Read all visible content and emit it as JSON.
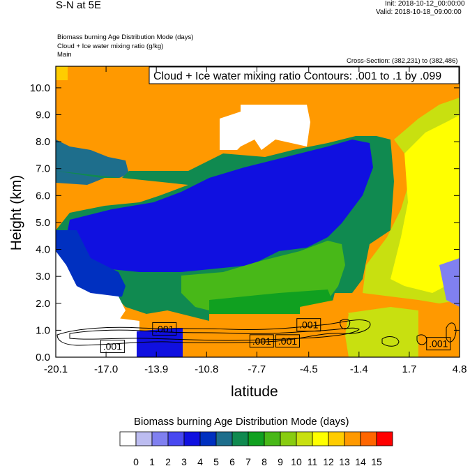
{
  "header": {
    "title": "S-N at 5E",
    "init": "Init: 2018-10-12_00:00:00",
    "valid": "Valid: 2018-10-18_09:00:00",
    "desc_line1": "Biomass burning Age Distribution Mode   (days)",
    "desc_line2": "Cloud + Ice water mixing ratio   (g/kg)",
    "desc_line3": "Main",
    "cross_section": "Cross-Section: (382,231) to (382,486)"
  },
  "chart_data": {
    "type": "heatmap",
    "title": "S-N at 5E",
    "xlabel": "latitude",
    "ylabel": "Height (km)",
    "x_ticks": [
      "-20.1",
      "-17.0",
      "-13.9",
      "-10.8",
      "-7.7",
      "-4.5",
      "-1.4",
      "1.7",
      "4.8"
    ],
    "y_ticks": [
      "0.0",
      "1.0",
      "2.0",
      "3.0",
      "4.0",
      "5.0",
      "6.0",
      "7.0",
      "8.0",
      "9.0",
      "10.0"
    ],
    "xlim": [
      -20.1,
      4.8
    ],
    "ylim": [
      0.0,
      10.8
    ],
    "contour_title": "Cloud + Ice water mixing ratio Contours: .001 to .1 by .099",
    "contour_labels": [
      {
        "text": ".001",
        "lat": -16.6,
        "h": 0.4
      },
      {
        "text": ".001",
        "lat": -13.4,
        "h": 1.05
      },
      {
        "text": ".001",
        "lat": -7.4,
        "h": 0.6
      },
      {
        "text": ".001",
        "lat": -5.8,
        "h": 0.6
      },
      {
        "text": ".001",
        "lat": -4.5,
        "h": 1.2
      },
      {
        "text": ".001",
        "lat": 3.5,
        "h": 0.5
      }
    ],
    "colorbar": {
      "title": "Biomass burning Age Distribution Mode  (days)",
      "labels": [
        "0",
        "1",
        "2",
        "3",
        "4",
        "5",
        "6",
        "7",
        "8",
        "9",
        "10",
        "11",
        "12",
        "13",
        "14",
        "15"
      ],
      "colors": [
        "#ffffff",
        "#bcbcf0",
        "#8080f0",
        "#4848f0",
        "#1010e0",
        "#0030c0",
        "#1e6e8c",
        "#108a50",
        "#10a020",
        "#48b818",
        "#88cc10",
        "#c8e010",
        "#ffff00",
        "#ffcc00",
        "#ff9900",
        "#ff6600",
        "#ff0000"
      ]
    },
    "grid": false
  }
}
